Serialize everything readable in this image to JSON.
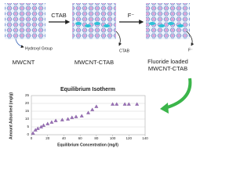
{
  "diagram": {
    "step1_label": "CTAB",
    "step2_label": "F⁻",
    "hydroxyl_label": "Hydroxyl Group",
    "released_ctab": "CTAB",
    "released_f": "F⁻",
    "nanotubes": [
      "MWCNT",
      "MWCNT-CTAB",
      "Fluoride loaded",
      "MWCNT-CTAB"
    ]
  },
  "chart_data": {
    "type": "scatter",
    "title": "Equilibrium Isotherm",
    "x_label": "Equilibrium Concentration (mg/l)",
    "y_label": "Amount Adsorbed (mg/g)",
    "x": [
      2,
      5,
      8,
      12,
      15,
      20,
      25,
      30,
      38,
      45,
      50,
      55,
      62,
      70,
      75,
      80,
      100,
      105,
      115,
      120,
      130
    ],
    "values": [
      1,
      3,
      4,
      5,
      6,
      7,
      8,
      9,
      9.5,
      10,
      11,
      11.5,
      12,
      14,
      16,
      18,
      19.5,
      19.5,
      19.5,
      19.5,
      19.5
    ],
    "color": "#9b6fb8",
    "xlim": [
      0,
      140
    ],
    "xticks": [
      0,
      20,
      40,
      60,
      80,
      100,
      120,
      140
    ],
    "ylim": [
      0,
      25
    ],
    "yticks": [
      0,
      5,
      10,
      15,
      20,
      25
    ],
    "grid": true
  }
}
